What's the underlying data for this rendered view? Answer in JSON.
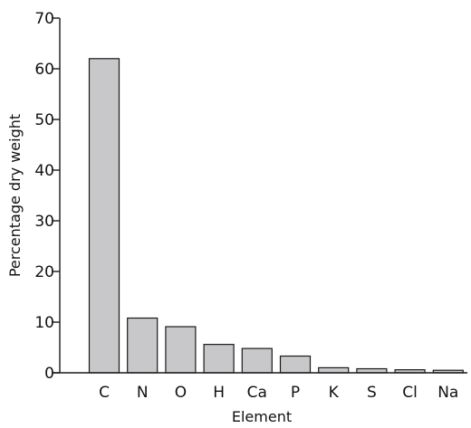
{
  "chart_data": {
    "type": "bar",
    "title": "",
    "xlabel": "Element",
    "ylabel": "Percentage dry weight",
    "categories": [
      "C",
      "N",
      "O",
      "H",
      "Ca",
      "P",
      "K",
      "S",
      "Cl",
      "Na"
    ],
    "values": [
      62,
      10.8,
      9.1,
      5.6,
      4.8,
      3.3,
      1.0,
      0.8,
      0.6,
      0.5
    ],
    "ylim": [
      0,
      70
    ],
    "yticks": [
      0,
      10,
      20,
      30,
      40,
      50,
      60,
      70
    ],
    "grid": false,
    "legend": "none",
    "colors": {
      "bar_fill": "#c8c8ca",
      "bar_stroke": "#1a1a1a",
      "axis": "#1a1a1a",
      "text": "#111111"
    }
  }
}
